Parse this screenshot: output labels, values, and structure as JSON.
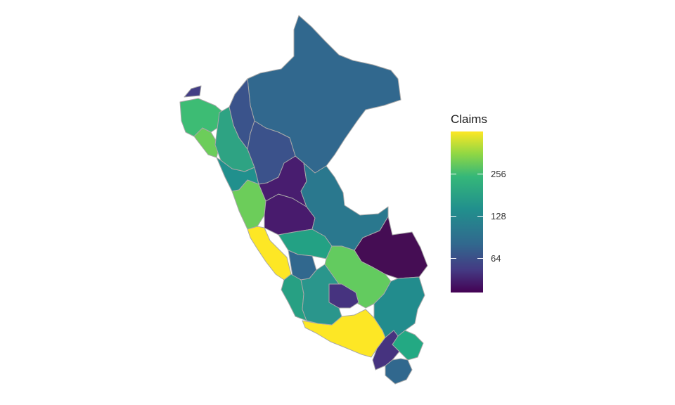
{
  "legend": {
    "title": "Claims",
    "scale": "log2",
    "ticks": [
      "64",
      "128",
      "256"
    ],
    "colormap": "viridis",
    "low_color": "#440154",
    "high_color": "#fde725"
  },
  "map": {
    "country": "Peru",
    "region_border_color": "#a8a8a8",
    "regions": [
      {
        "shade": "#31688e"
      },
      {
        "shade": "#450d54"
      },
      {
        "shade": "#3dbc74"
      },
      {
        "shade": "#6ccd5a"
      },
      {
        "shade": "#2ea383"
      },
      {
        "shade": "#3a538b"
      },
      {
        "shade": "#433e85"
      },
      {
        "shade": "#21908d"
      },
      {
        "shade": "#6ccd5a"
      },
      {
        "shade": "#3b528b"
      },
      {
        "shade": "#481b6d"
      },
      {
        "shade": "#fde725"
      },
      {
        "shade": "#23a184"
      },
      {
        "shade": "#481d6f"
      },
      {
        "shade": "#2a788e"
      },
      {
        "shade": "#63cb5f"
      },
      {
        "shade": "#31688e"
      },
      {
        "shade": "#27a083"
      },
      {
        "shade": "#fde725"
      },
      {
        "shade": "#46337f"
      },
      {
        "shade": "#2a968c"
      },
      {
        "shade": "#228c8d"
      },
      {
        "shade": "#23a983"
      },
      {
        "shade": "#31688e"
      },
      {
        "shade": "#46337f"
      }
    ]
  }
}
